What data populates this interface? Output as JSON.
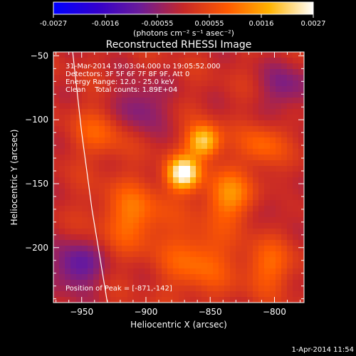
{
  "colorbar": {
    "ticks": [
      "-0.0027",
      "-0.0016",
      "-0.00055",
      "0.00055",
      "0.0016",
      "0.0027"
    ],
    "unit_label": "(photons cm⁻² s⁻¹ asec⁻²)",
    "range": [
      -0.0027,
      0.0027
    ],
    "colors": [
      "#0000ff",
      "#3300cc",
      "#6a1b9a",
      "#c62828",
      "#ff5a00",
      "#ffb300",
      "#ffffff"
    ]
  },
  "chart_data": {
    "type": "heatmap",
    "title": "Reconstructed RHESSI Image",
    "xlabel": "Heliocentric X (arcsec)",
    "ylabel": "Heliocentric Y (arcsec)",
    "xlim": [
      -972,
      -777
    ],
    "ylim": [
      -243,
      -47
    ],
    "xticks": [
      -950,
      -900,
      -850,
      -800
    ],
    "yticks": [
      -50,
      -100,
      -150,
      -200
    ],
    "colormap": "blue-purple-red-yellow-white (symmetric)",
    "sources": [
      {
        "x": -871,
        "y": -142,
        "intensity": 0.0027,
        "sigma": 9
      },
      {
        "x": -855,
        "y": -117,
        "intensity": 0.0022,
        "sigma": 9
      },
      {
        "x": -835,
        "y": -160,
        "intensity": 0.0013,
        "sigma": 14
      },
      {
        "x": -910,
        "y": -175,
        "intensity": 0.0011,
        "sigma": 18
      },
      {
        "x": -935,
        "y": -110,
        "intensity": 0.0008,
        "sigma": 14
      },
      {
        "x": -860,
        "y": -210,
        "intensity": 0.001,
        "sigma": 18
      },
      {
        "x": -805,
        "y": -215,
        "intensity": 0.0009,
        "sigma": 14
      },
      {
        "x": -810,
        "y": -120,
        "intensity": 0.0009,
        "sigma": 12
      },
      {
        "x": -905,
        "y": -90,
        "intensity": -0.0009,
        "sigma": 14
      },
      {
        "x": -955,
        "y": -215,
        "intensity": -0.0012,
        "sigma": 14
      },
      {
        "x": -790,
        "y": -75,
        "intensity": -0.0008,
        "sigma": 14
      },
      {
        "x": -800,
        "y": -165,
        "intensity": -0.0004,
        "sigma": 10
      }
    ],
    "limb_arc": {
      "description": "solar limb",
      "points": [
        [
          -957,
          -47
        ],
        [
          -950,
          -110
        ],
        [
          -942,
          -170
        ],
        [
          -930,
          -243
        ]
      ]
    },
    "annotations": [
      "31-Mar-2014 19:03:04.000 to 19:05:52.000",
      "Detectors: 3F 5F 6F 7F 8F 9F, Att 0",
      "Energy Range: 12.0 - 25.0 keV",
      "Clean    Total counts: 1.89E+04"
    ],
    "peak_label": "Position of Peak = [-871,-142]"
  },
  "footer": {
    "timestamp": "1-Apr-2014 11:54"
  }
}
